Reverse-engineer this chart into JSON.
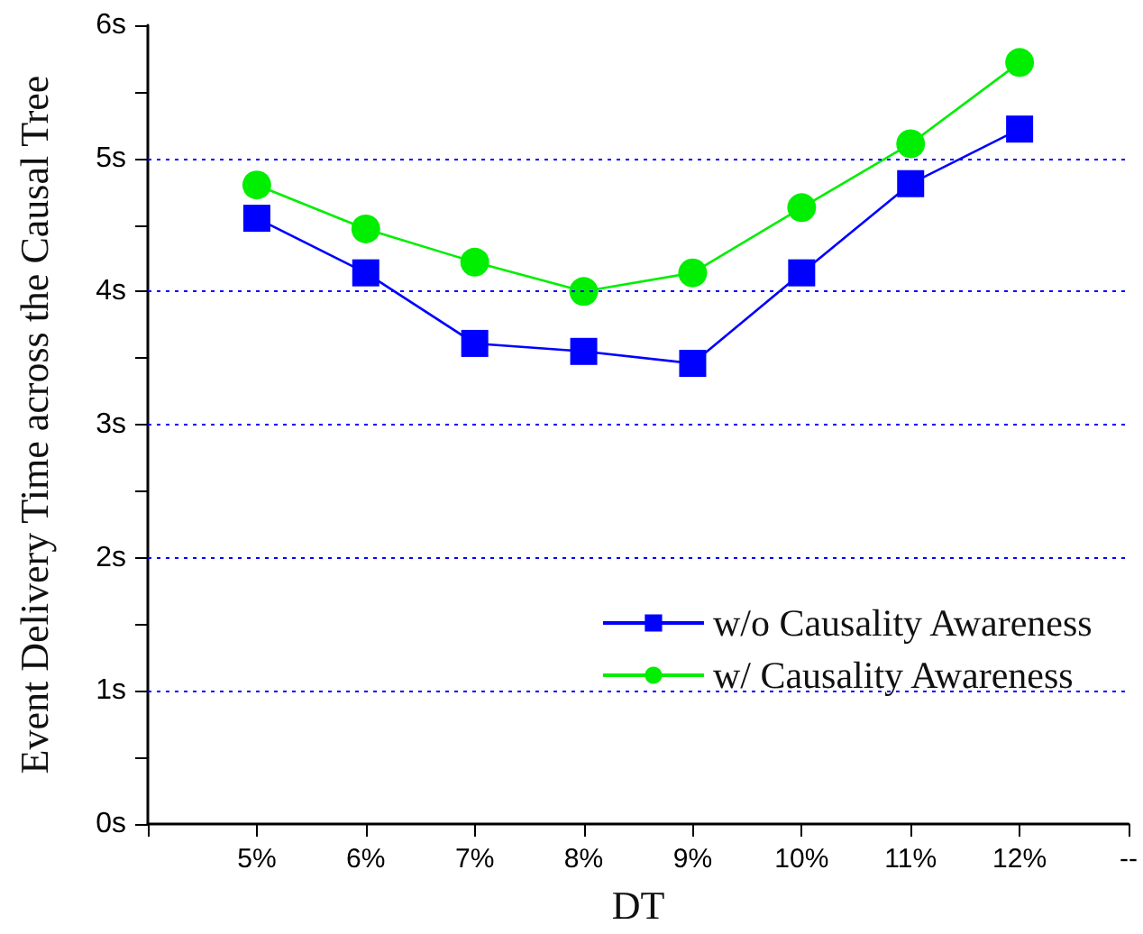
{
  "chart_data": {
    "type": "line",
    "xlabel": "DT",
    "ylabel": "Event Delivery Time across the Causal Tree",
    "categories": [
      null,
      "5%",
      "6%",
      "7%",
      "8%",
      "9%",
      "10%",
      "11%",
      "12%",
      "--"
    ],
    "series": [
      {
        "name": "w/o Causality Awareness",
        "color": "#0000ff",
        "marker": "square",
        "values": [
          null,
          4.55,
          4.14,
          3.61,
          3.55,
          3.46,
          4.14,
          4.81,
          5.22,
          null
        ]
      },
      {
        "name": "w/ Causality Awareness",
        "color": "#00ee00",
        "marker": "circle",
        "values": [
          null,
          4.8,
          4.47,
          4.22,
          4.0,
          4.14,
          4.63,
          5.11,
          5.72,
          null
        ]
      }
    ],
    "ylim": [
      0,
      6
    ],
    "yticks": [
      {
        "value": 0,
        "label": "0s"
      },
      {
        "value": 0.5,
        "label": null
      },
      {
        "value": 1,
        "label": "1s"
      },
      {
        "value": 1.5,
        "label": null
      },
      {
        "value": 2,
        "label": "2s"
      },
      {
        "value": 2.5,
        "label": null
      },
      {
        "value": 3,
        "label": "3s"
      },
      {
        "value": 3.5,
        "label": null
      },
      {
        "value": 4,
        "label": "4s"
      },
      {
        "value": 4.5,
        "label": null
      },
      {
        "value": 5,
        "label": "5s"
      },
      {
        "value": 5.5,
        "label": null
      },
      {
        "value": 6,
        "label": "6s"
      }
    ],
    "grid": "y",
    "legend": "bottom right",
    "line_style": "solid"
  }
}
